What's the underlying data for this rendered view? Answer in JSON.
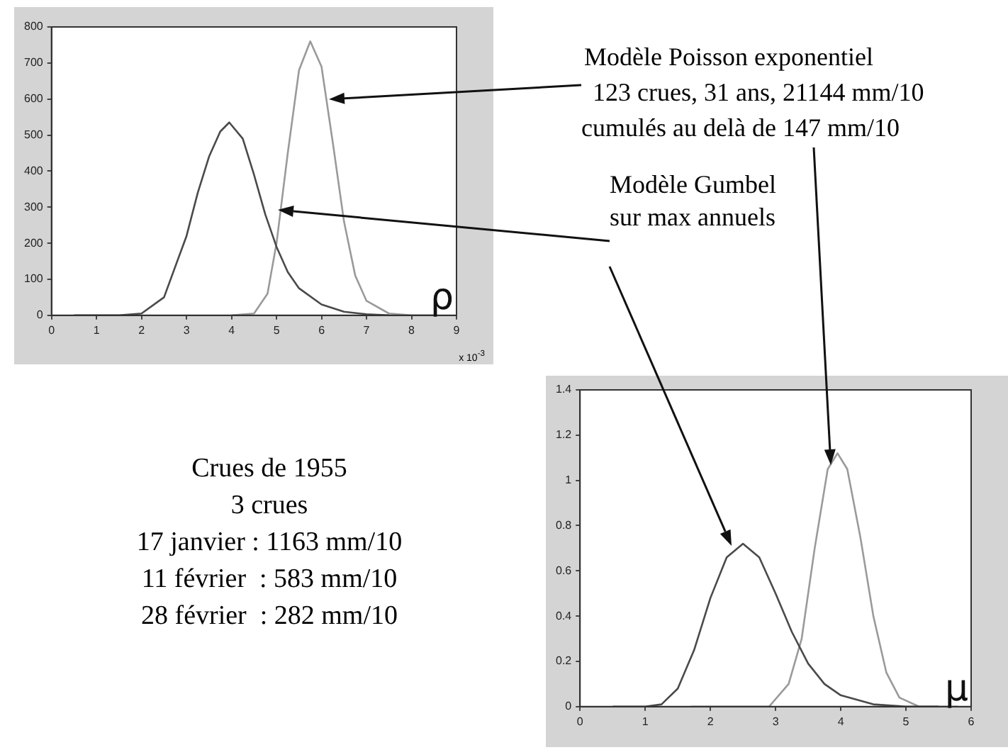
{
  "chart_data": [
    {
      "type": "line",
      "xlabel": "ρ",
      "xlim": [
        0,
        9
      ],
      "xticks": [
        0,
        1,
        2,
        3,
        4,
        5,
        6,
        7,
        8,
        9
      ],
      "ylim": [
        0,
        800
      ],
      "yticks": [
        0,
        100,
        200,
        300,
        400,
        500,
        600,
        700,
        800
      ],
      "grid": false,
      "legend": false,
      "annotations": [
        "Modèle Poisson exponentiel",
        "123 crues, 31 ans, 21144 mm/10",
        "cumulés au delà de 147 mm/10",
        "Modèle Gumbel",
        "sur max annuels",
        "x 10$^{-3}$"
      ],
      "series": [
        {
          "color": "#4a4a4a",
          "x": [
            0.5,
            1.5,
            2.0,
            2.5,
            3.0,
            3.25,
            3.5,
            3.75,
            3.95,
            4.25,
            4.5,
            4.75,
            5.0,
            5.25,
            5.5,
            6.0,
            6.5,
            7.0,
            7.5
          ],
          "values": [
            0,
            0,
            5,
            50,
            220,
            340,
            440,
            510,
            535,
            490,
            390,
            280,
            190,
            120,
            75,
            30,
            10,
            3,
            0
          ]
        },
        {
          "color": "#9a9a9a",
          "x": [
            4.0,
            4.5,
            4.8,
            5.0,
            5.25,
            5.5,
            5.75,
            6.0,
            6.25,
            6.5,
            6.75,
            7.0,
            7.5,
            8.0,
            8.5
          ],
          "values": [
            0,
            5,
            60,
            200,
            450,
            680,
            760,
            690,
            480,
            260,
            110,
            40,
            5,
            0,
            0
          ]
        }
      ]
    },
    {
      "type": "line",
      "xlabel": "μ",
      "xlim": [
        0,
        6
      ],
      "xticks": [
        0,
        1,
        2,
        3,
        4,
        5,
        6
      ],
      "ylim": [
        0,
        1.4
      ],
      "yticks": [
        0,
        0.2,
        0.4,
        0.6,
        0.8,
        1,
        1.2,
        1.4
      ],
      "grid": false,
      "legend": false,
      "series": [
        {
          "color": "#4a4a4a",
          "x": [
            0.5,
            1.0,
            1.25,
            1.5,
            1.75,
            2.0,
            2.25,
            2.5,
            2.75,
            3.0,
            3.25,
            3.5,
            3.75,
            4.0,
            4.5,
            5.0,
            5.5
          ],
          "values": [
            0,
            0,
            0.01,
            0.08,
            0.25,
            0.48,
            0.66,
            0.72,
            0.66,
            0.5,
            0.33,
            0.19,
            0.1,
            0.05,
            0.01,
            0,
            0
          ]
        },
        {
          "color": "#9a9a9a",
          "x": [
            1.7,
            2.9,
            3.2,
            3.4,
            3.6,
            3.8,
            3.95,
            4.1,
            4.3,
            4.5,
            4.7,
            4.9,
            5.2,
            5.8
          ],
          "values": [
            0,
            0,
            0.1,
            0.3,
            0.7,
            1.05,
            1.12,
            1.05,
            0.75,
            0.4,
            0.15,
            0.04,
            0,
            0
          ]
        }
      ]
    },
    {
      "type": "other",
      "annotations": [
        "Crues de 1955",
        "3 crues",
        "17 janvier : 1163 mm/10",
        "11 février  : 583 mm/10",
        "28 février  : 282 mm/10"
      ]
    }
  ]
}
